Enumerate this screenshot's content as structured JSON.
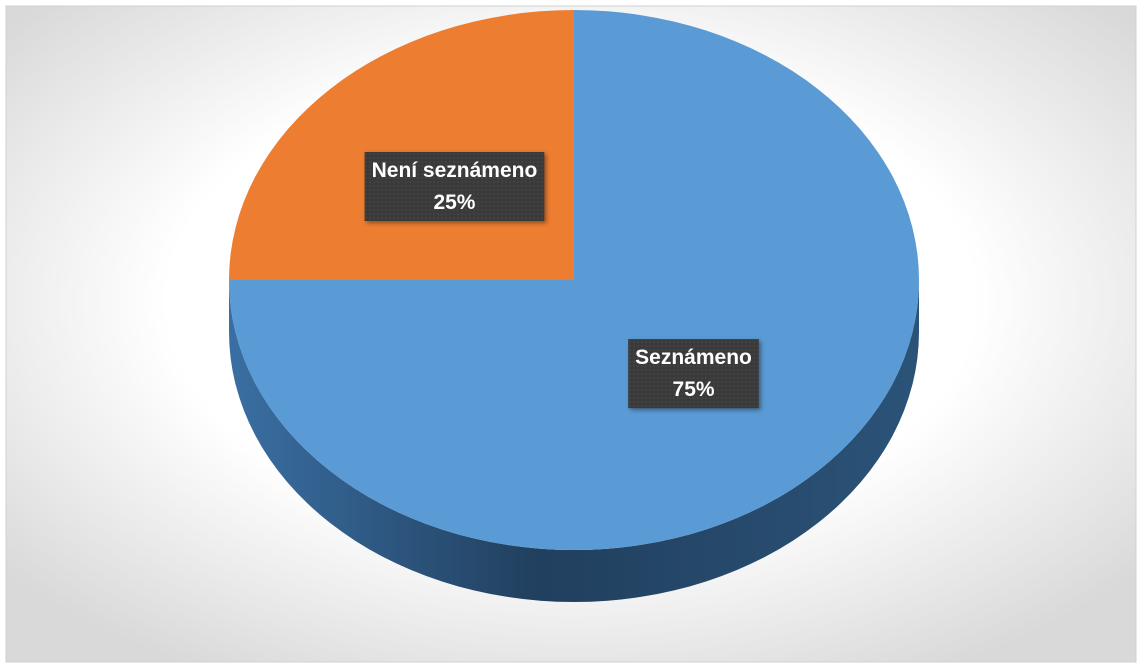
{
  "chart_data": {
    "type": "pie",
    "categories": [
      "Seznámeno",
      "Není seznámeno"
    ],
    "values": [
      75,
      25
    ],
    "value_labels": [
      "75%",
      "25%"
    ],
    "colors": [
      "#5b9bd5",
      "#ed7d31"
    ],
    "start_angle": 0,
    "direction": "clockwise"
  }
}
